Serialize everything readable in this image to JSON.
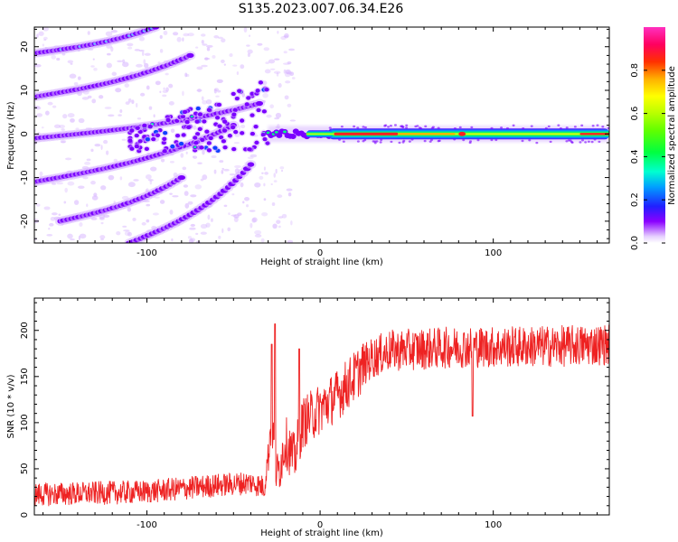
{
  "title": "S135.2023.007.06.34.E26",
  "colors": {
    "snr_line": "#ee2222",
    "spectral_base": "#7a00ff",
    "spectral_halo": "#d9b8ff"
  },
  "chart_data": [
    {
      "type": "heatmap",
      "xlabel": "Height of straight line (km)",
      "ylabel": "Frequency (Hz)",
      "xlim": [
        -165,
        167
      ],
      "ylim": [
        -25,
        24.5
      ],
      "xticks": [
        -100,
        0,
        100
      ],
      "yticks": [
        -20,
        -10,
        0,
        10,
        20
      ],
      "grid": false,
      "colorbar": {
        "label": "Normalized spectral amplitude",
        "range": [
          0.0,
          1.0
        ],
        "ticks": [
          0.0,
          0.2,
          0.4,
          0.6,
          0.8
        ],
        "tick_labels": [
          "0.0",
          "0.2",
          "0.4",
          "0.6",
          "0.8"
        ],
        "colormap": "gist_ncar-like (purple-blue-cyan-green-yellow-red-magenta)"
      },
      "features": {
        "carrier": {
          "freq_hz": 0,
          "x_start": -30,
          "x_end": 167,
          "peak_amplitude": 0.9
        },
        "sidebands": [
          {
            "freq_at_x_start": 18.5,
            "x_start": -165,
            "x_end": -95,
            "freq_at_x_end": 24.5
          },
          {
            "freq_at_x_start": 8.5,
            "x_start": -165,
            "x_end": -75,
            "freq_at_x_end": 18
          },
          {
            "freq_at_x_start": -1,
            "x_start": -165,
            "x_end": -35,
            "freq_at_x_end": 7
          },
          {
            "freq_at_x_start": -11,
            "x_start": -165,
            "x_end": -50,
            "freq_at_x_end": 2
          },
          {
            "freq_at_x_start": -20,
            "x_start": -150,
            "x_end": -80,
            "freq_at_x_end": -10
          },
          {
            "freq_at_x_start": -25,
            "x_start": -110,
            "x_end": -40,
            "freq_at_x_end": -7
          }
        ]
      }
    },
    {
      "type": "line",
      "xlabel": "Height of straight line (km)",
      "ylabel": "SNR (10 * v/v)",
      "xlim": [
        -165,
        167
      ],
      "ylim": [
        0,
        235
      ],
      "xticks": [
        -100,
        0,
        100
      ],
      "yticks": [
        0,
        50,
        100,
        150,
        200
      ],
      "grid": false,
      "series": [
        {
          "envelope_x": [
            -165,
            -100,
            -60,
            -40,
            -32,
            -28,
            -25,
            -20,
            -15,
            -10,
            0,
            10,
            20,
            25,
            30,
            40,
            60,
            80,
            100,
            140,
            167
          ],
          "envelope_y": [
            22,
            25,
            32,
            35,
            30,
            105,
            40,
            80,
            60,
            100,
            115,
            130,
            150,
            162,
            170,
            178,
            180,
            182,
            182,
            183,
            185
          ],
          "noise_amplitude": 14,
          "spikes": [
            {
              "x": -28,
              "y": 185
            },
            {
              "x": -26,
              "y": 207
            },
            {
              "x": -12,
              "y": 180
            },
            {
              "x": 88,
              "y": 107
            }
          ]
        }
      ]
    }
  ]
}
